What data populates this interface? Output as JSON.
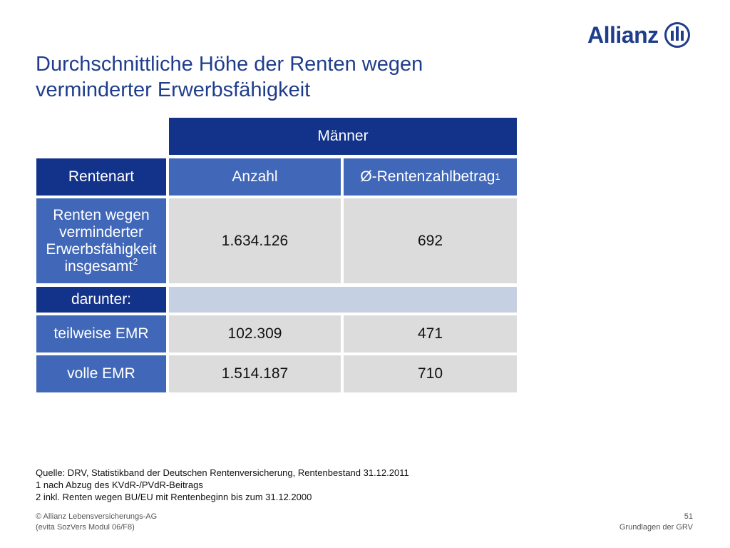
{
  "logo": {
    "text": "Allianz"
  },
  "title": "Durchschnittliche Höhe der Renten wegen verminderter Erwerbsfähigkeit",
  "table": {
    "group_header": "Männer",
    "headers": {
      "rentenart": "Rentenart",
      "anzahl": "Anzahl",
      "betrag": "Ø-Rentenzahlbetrag",
      "betrag_sup": "1"
    },
    "rows": [
      {
        "label": "Renten wegen verminderter Erwerbsfähigkeit insgesamt",
        "label_sup": "2",
        "anzahl": "1.634.126",
        "betrag": "692"
      },
      {
        "label": "darunter:"
      },
      {
        "label": "teilweise EMR",
        "anzahl": "102.309",
        "betrag": "471"
      },
      {
        "label": "volle EMR",
        "anzahl": "1.514.187",
        "betrag": "710"
      }
    ]
  },
  "sources": {
    "quelle": "Quelle: DRV, Statistikband der Deutschen Rentenversicherung, Rentenbestand 31.12.2011",
    "note1": "1  nach Abzug des KVdR-/PVdR-Beitrags",
    "note2": "2  inkl. Renten wegen BU/EU mit Rentenbeginn bis zum 31.12.2000"
  },
  "footer": {
    "copyright": "© Allianz Lebensversicherungs-AG",
    "module": "(evita SozVers Modul 06/F8)",
    "page_number": "51",
    "section": "Grundlagen der GRV"
  },
  "colors": {
    "brand_blue": "#1f3d8c",
    "header_dark": "#13338a",
    "header_mid": "#4167b8",
    "cell_grey": "#dcdcdc",
    "cell_pale": "#c6d0e3"
  }
}
